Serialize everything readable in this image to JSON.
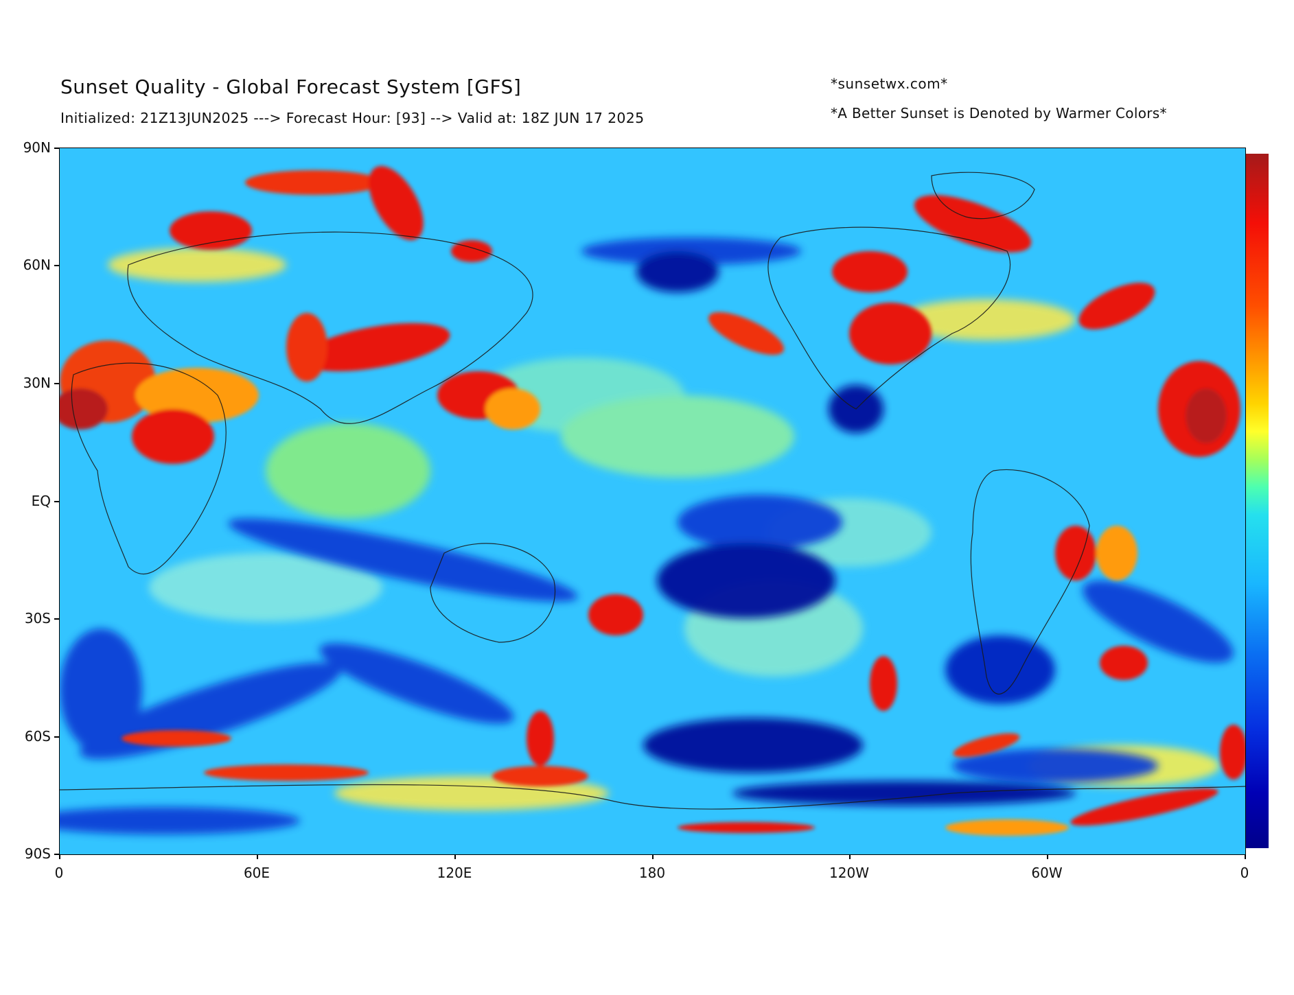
{
  "header": {
    "title": "Sunset Quality - Global Forecast System [GFS]",
    "subtitle": "Initialized: 21Z13JUN2025 ---> Forecast Hour: [93] --> Valid at: 18Z JUN 17 2025",
    "credit": "*sunsetwx.com*",
    "note": "*A Better Sunset is Denoted by Warmer Colors*"
  },
  "axes": {
    "lat_labels": [
      "90N",
      "60N",
      "30N",
      "EQ",
      "30S",
      "60S",
      "90S"
    ],
    "lon_labels": [
      "0",
      "60E",
      "120E",
      "180",
      "120W",
      "60W",
      "0"
    ]
  },
  "colors": {
    "background_field": "#33c4ff",
    "scale_top": "#a51a1a",
    "scale_bottom": "#00008b"
  }
}
